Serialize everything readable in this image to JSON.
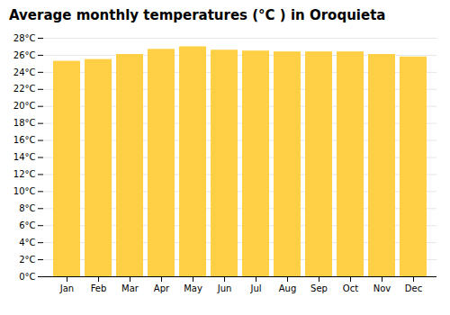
{
  "chart_data": {
    "type": "bar",
    "title": "Average monthly temperatures (°C ) in Oroquieta",
    "categories": [
      "Jan",
      "Feb",
      "Mar",
      "Apr",
      "May",
      "Jun",
      "Jul",
      "Aug",
      "Sep",
      "Oct",
      "Nov",
      "Dec"
    ],
    "values": [
      25.3,
      25.5,
      26.1,
      26.7,
      27.0,
      26.6,
      26.5,
      26.4,
      26.4,
      26.4,
      26.1,
      25.8
    ],
    "color": "#FFD045",
    "ylim": [
      0,
      28
    ],
    "yticks": [
      {
        "value": 0,
        "label": "0°C"
      },
      {
        "value": 2,
        "label": "2°C"
      },
      {
        "value": 4,
        "label": "4°C"
      },
      {
        "value": 6,
        "label": "6°C"
      },
      {
        "value": 8,
        "label": "8°C"
      },
      {
        "value": 10,
        "label": "10°C"
      },
      {
        "value": 12,
        "label": "12°C"
      },
      {
        "value": 14,
        "label": "14°C"
      },
      {
        "value": 16,
        "label": "16°C"
      },
      {
        "value": 18,
        "label": "18°C"
      },
      {
        "value": 20,
        "label": "20°C"
      },
      {
        "value": 22,
        "label": "22°C"
      },
      {
        "value": 24,
        "label": "24°C"
      },
      {
        "value": 26,
        "label": "26°C"
      },
      {
        "value": 28,
        "label": "28°C"
      }
    ],
    "grid": true
  }
}
